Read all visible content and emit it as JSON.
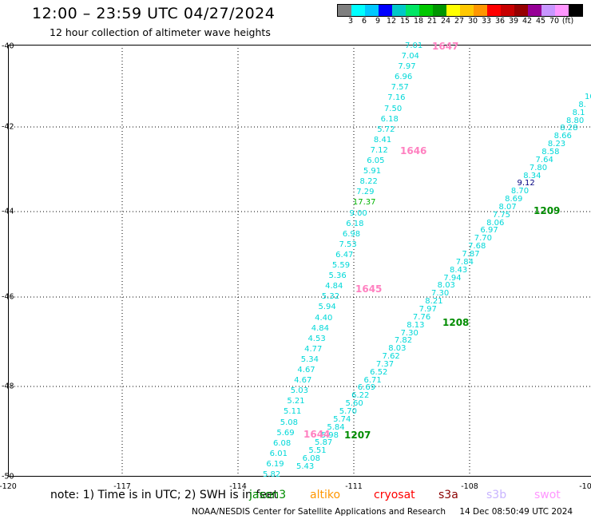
{
  "header": {
    "title": "12:00 – 23:59 UTC 04/27/2024",
    "subtitle": "12 hour collection of altimeter wave heights"
  },
  "legend": {
    "colors": [
      "#7f7f7f",
      "#00ffff",
      "#00c8ff",
      "#0000ff",
      "#00c8c8",
      "#00e664",
      "#00c800",
      "#009600",
      "#ffff00",
      "#ffc800",
      "#ff9600",
      "#ff0000",
      "#c80000",
      "#960000",
      "#960096",
      "#c896ff",
      "#ff96ff",
      "#000000"
    ],
    "ticks": [
      "3",
      "6",
      "9",
      "12",
      "15",
      "18",
      "21",
      "24",
      "27",
      "30",
      "33",
      "36",
      "39",
      "42",
      "45",
      "70",
      "(ft)"
    ]
  },
  "map": {
    "lat_labels": [
      "-40",
      "-42",
      "-44",
      "-46",
      "-48",
      "-50"
    ],
    "lon_labels": [
      "-120",
      "-117",
      "-114",
      "-111",
      "-108",
      "-10"
    ],
    "track1": {
      "color": "#00d8d8",
      "values": [
        "7.01",
        "7.04",
        "7.97",
        "6.96",
        "7.57",
        "7.16",
        "7.50",
        "6.18",
        "5.72",
        "8.41",
        "7.12",
        "6.05",
        "5.91",
        "8.22",
        "7.29",
        "17.37",
        "9.00",
        "6.18",
        "6.98",
        "7.53",
        "6.47",
        "5.59",
        "5.36",
        "4.84",
        "5.32",
        "5.94",
        "4.40",
        "4.84",
        "4.53",
        "4.77",
        "5.34",
        "4.67",
        "4.67",
        "5.03",
        "5.21",
        "5.11",
        "5.08",
        "5.69",
        "6.08",
        "6.01",
        "6.19",
        "5.82"
      ],
      "times": [
        "1647",
        "1646",
        "1645",
        "1644"
      ]
    },
    "track2": {
      "color": "#00d8d8",
      "values": [
        "10",
        "8.",
        "8.1",
        "8.80",
        "8.28",
        "8.66",
        "8.23",
        "8.58",
        "7.64",
        "7.80",
        "8.34",
        "9.12",
        "8.70",
        "8.69",
        "8.07",
        "7.75",
        "8.06",
        "6.97",
        "7.70",
        "7.68",
        "7.87",
        "7.84",
        "8.43",
        "7.94",
        "8.03",
        "7.30",
        "8.21",
        "7.97",
        "7.76",
        "8.13",
        "7.30",
        "7.82",
        "8.03",
        "7.62",
        "7.37",
        "6.52",
        "6.71",
        "6.69",
        "6.22",
        "5.60",
        "5.70",
        "5.74",
        "5.84",
        "5.98",
        "5.87",
        "5.51",
        "6.08",
        "5.43"
      ],
      "times": [
        "1209",
        "1208",
        "1207"
      ]
    }
  },
  "note": "note:  1) Time is in UTC; 2) SWH is in feet",
  "satellites": {
    "jason3": "jason3",
    "altika": "altiko",
    "cryosat": "cryosat",
    "s3a": "s3a",
    "s3b": "s3b",
    "swot": "swot"
  },
  "footer": {
    "org": "NOAA/NESDIS Center for Satellite Applications and Research",
    "timestamp": "14 Dec 08:50:49 UTC 2024"
  }
}
